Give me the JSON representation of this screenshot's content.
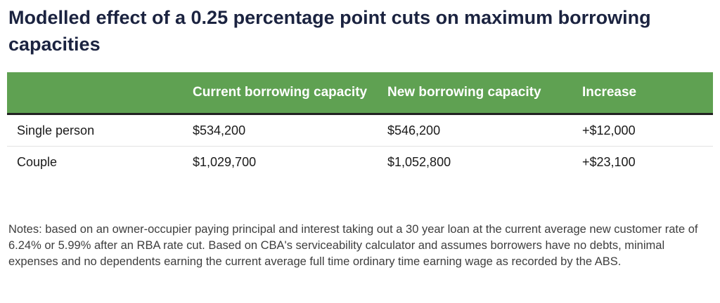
{
  "title": "Modelled effect of a 0.25 percentage point cuts on maximum borrowing capacities",
  "chart_data": {
    "type": "table",
    "columns": [
      "",
      "Current borrowing capacity",
      "New borrowing capacity",
      "Increase"
    ],
    "rows": [
      {
        "label": "Single person",
        "current": "$534,200",
        "new": "$546,200",
        "increase": "+$12,000"
      },
      {
        "label": "Couple",
        "current": "$1,029,700",
        "new": "$1,052,800",
        "increase": "+$23,100"
      }
    ],
    "header_color": "#5fa152"
  },
  "notes": "Notes: based on an owner-occupier paying principal and interest taking out a 30 year loan at the current average new customer rate of 6.24% or 5.99% after an RBA rate cut. Based on CBA's serviceability calculator and assumes borrowers have no debts, minimal expenses and no dependents earning the current average full time ordinary time earning wage as recorded by the ABS."
}
